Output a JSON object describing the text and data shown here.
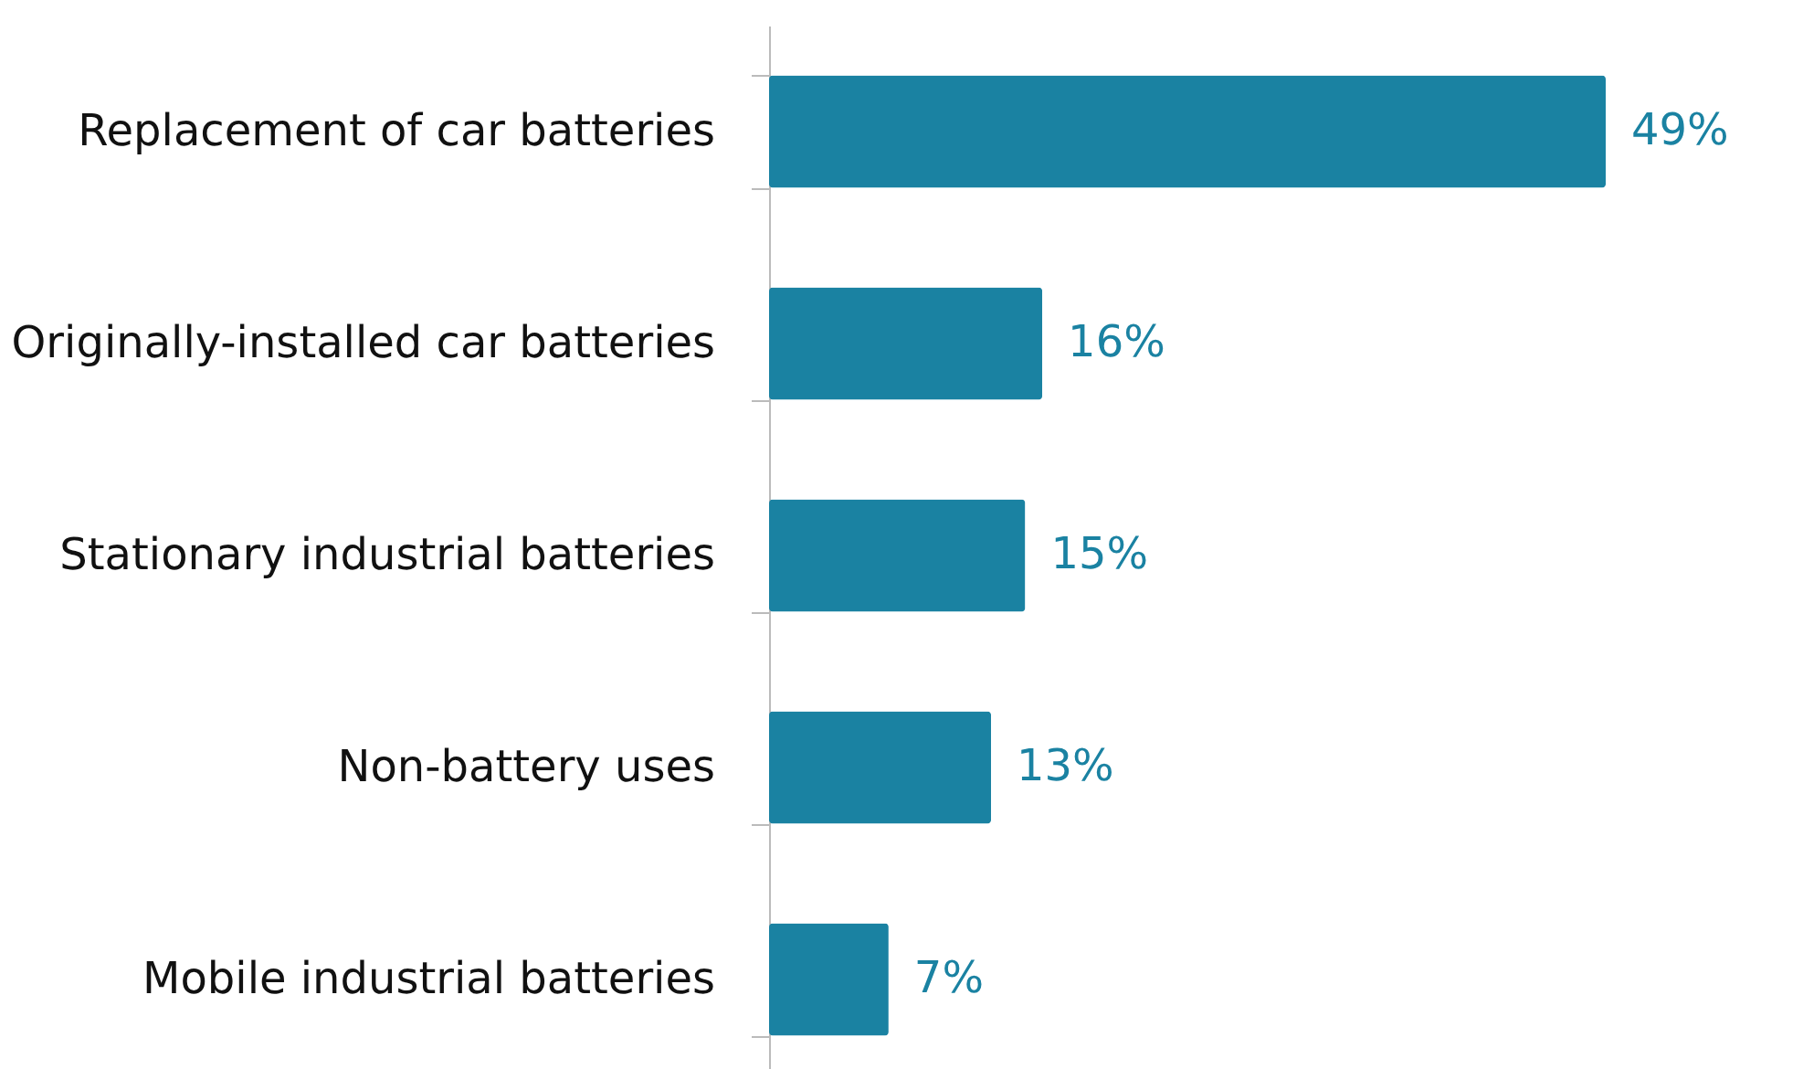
{
  "chart_data": {
    "type": "bar",
    "orientation": "horizontal",
    "categories": [
      "Replacement of car batteries",
      "Originally-installed car batteries",
      "Stationary industrial batteries",
      "Non-battery uses",
      "Mobile industrial batteries"
    ],
    "values": [
      49,
      16,
      15,
      13,
      7
    ],
    "color": "#1a82a2",
    "value_labels": [
      "49%",
      "16%",
      "15%",
      "13%",
      "7%"
    ]
  }
}
